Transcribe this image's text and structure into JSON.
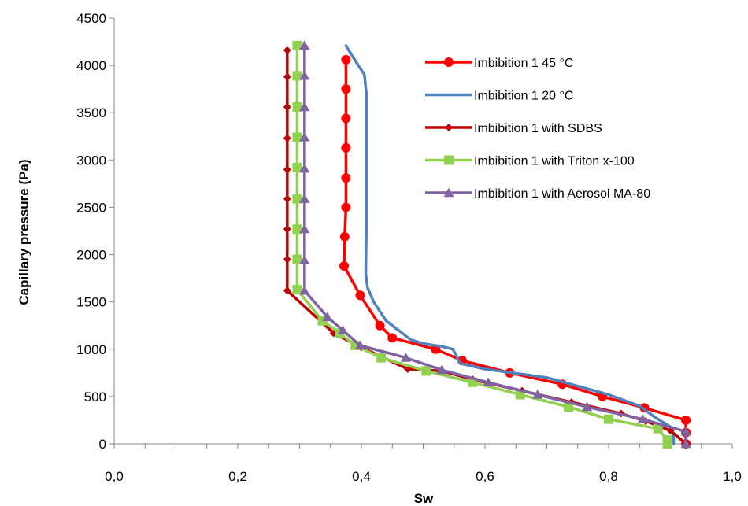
{
  "chart_data": {
    "type": "line",
    "title": "",
    "xlabel": "Sw",
    "ylabel": "Capillary pressure (Pa)",
    "xlim": [
      0,
      1
    ],
    "ylim": [
      0,
      4500
    ],
    "x_ticks": [
      "0,0",
      "0,2",
      "0,4",
      "0,6",
      "0,8",
      "1,0"
    ],
    "x_tick_values": [
      0,
      0.2,
      0.4,
      0.6,
      0.8,
      1.0
    ],
    "y_ticks": [
      "0",
      "500",
      "1000",
      "1500",
      "2000",
      "2500",
      "3000",
      "3500",
      "4000",
      "4500"
    ],
    "y_tick_values": [
      0,
      500,
      1000,
      1500,
      2000,
      2500,
      3000,
      3500,
      4000,
      4500
    ],
    "grid": false,
    "legend_position": "top-right",
    "series": [
      {
        "name": "Imbibition 1 45 °C",
        "color": "#ff0000",
        "marker": "circle",
        "points": [
          [
            0.375,
            4060
          ],
          [
            0.375,
            3750
          ],
          [
            0.375,
            3440
          ],
          [
            0.375,
            3130
          ],
          [
            0.375,
            2810
          ],
          [
            0.375,
            2500
          ],
          [
            0.373,
            2190
          ],
          [
            0.372,
            1880
          ],
          [
            0.398,
            1570
          ],
          [
            0.43,
            1250
          ],
          [
            0.45,
            1120
          ],
          [
            0.52,
            1000
          ],
          [
            0.563,
            880
          ],
          [
            0.64,
            750
          ],
          [
            0.725,
            630
          ],
          [
            0.79,
            500
          ],
          [
            0.858,
            380
          ],
          [
            0.925,
            250
          ],
          [
            0.925,
            120
          ],
          [
            0.925,
            0
          ]
        ]
      },
      {
        "name": "Imbibition 1 20 °C",
        "color": "#4f81bd",
        "marker": "none",
        "points": [
          [
            0.375,
            4210
          ],
          [
            0.39,
            4050
          ],
          [
            0.405,
            3900
          ],
          [
            0.408,
            3700
          ],
          [
            0.408,
            3000
          ],
          [
            0.408,
            2300
          ],
          [
            0.407,
            1800
          ],
          [
            0.41,
            1650
          ],
          [
            0.42,
            1500
          ],
          [
            0.44,
            1300
          ],
          [
            0.46,
            1200
          ],
          [
            0.48,
            1100
          ],
          [
            0.5,
            1060
          ],
          [
            0.53,
            1030
          ],
          [
            0.548,
            1000
          ],
          [
            0.56,
            850
          ],
          [
            0.6,
            790
          ],
          [
            0.7,
            700
          ],
          [
            0.8,
            520
          ],
          [
            0.85,
            400
          ],
          [
            0.875,
            280
          ],
          [
            0.9,
            180
          ],
          [
            0.905,
            80
          ],
          [
            0.905,
            0
          ]
        ]
      },
      {
        "name": "Imbibition 1  with SDBS",
        "color": "#c00000",
        "marker": "diamond",
        "points": [
          [
            0.28,
            4160
          ],
          [
            0.28,
            3880
          ],
          [
            0.28,
            3560
          ],
          [
            0.28,
            3230
          ],
          [
            0.28,
            2900
          ],
          [
            0.28,
            2590
          ],
          [
            0.28,
            2270
          ],
          [
            0.28,
            1950
          ],
          [
            0.28,
            1620
          ],
          [
            0.355,
            1170
          ],
          [
            0.4,
            1020
          ],
          [
            0.475,
            790
          ],
          [
            0.53,
            770
          ],
          [
            0.58,
            680
          ],
          [
            0.66,
            560
          ],
          [
            0.74,
            440
          ],
          [
            0.82,
            320
          ],
          [
            0.86,
            240
          ],
          [
            0.9,
            140
          ],
          [
            0.925,
            0
          ]
        ]
      },
      {
        "name": "Imbibition 1  with Triton x-100",
        "color": "#92d050",
        "marker": "square",
        "points": [
          [
            0.296,
            4210
          ],
          [
            0.296,
            3890
          ],
          [
            0.296,
            3560
          ],
          [
            0.296,
            3240
          ],
          [
            0.296,
            2920
          ],
          [
            0.296,
            2590
          ],
          [
            0.296,
            2270
          ],
          [
            0.296,
            1950
          ],
          [
            0.296,
            1630
          ],
          [
            0.337,
            1300
          ],
          [
            0.365,
            1170
          ],
          [
            0.39,
            1040
          ],
          [
            0.432,
            910
          ],
          [
            0.505,
            770
          ],
          [
            0.58,
            650
          ],
          [
            0.657,
            520
          ],
          [
            0.735,
            390
          ],
          [
            0.8,
            260
          ],
          [
            0.88,
            160
          ],
          [
            0.895,
            40
          ],
          [
            0.895,
            0
          ]
        ]
      },
      {
        "name": "Imbibition 1 with Aerosol MA-80",
        "color": "#8064a2",
        "marker": "triangle",
        "points": [
          [
            0.308,
            4210
          ],
          [
            0.308,
            3890
          ],
          [
            0.308,
            3560
          ],
          [
            0.308,
            3240
          ],
          [
            0.308,
            2910
          ],
          [
            0.308,
            2590
          ],
          [
            0.308,
            2270
          ],
          [
            0.308,
            1940
          ],
          [
            0.308,
            1620
          ],
          [
            0.345,
            1340
          ],
          [
            0.37,
            1200
          ],
          [
            0.398,
            1040
          ],
          [
            0.472,
            910
          ],
          [
            0.53,
            780
          ],
          [
            0.605,
            650
          ],
          [
            0.685,
            520
          ],
          [
            0.765,
            390
          ],
          [
            0.855,
            260
          ],
          [
            0.925,
            130
          ],
          [
            0.925,
            0
          ]
        ]
      }
    ]
  }
}
